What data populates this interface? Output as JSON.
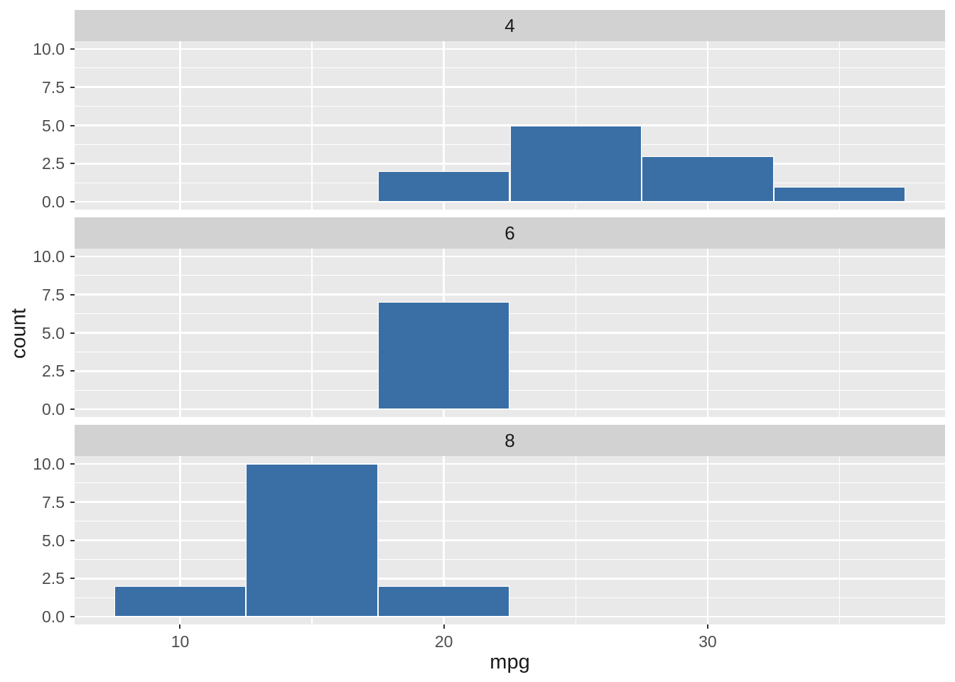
{
  "chart_data": {
    "type": "histogram",
    "title": "",
    "xlabel": "mpg",
    "ylabel": "count",
    "binwidth": 5,
    "grid": true,
    "legend_position": "none",
    "x_range": [
      6,
      39
    ],
    "y_range": [
      -0.5,
      10.5
    ],
    "x_major_ticks": [
      10,
      20,
      30
    ],
    "x_tick_labels": [
      "10",
      "20",
      "30"
    ],
    "x_minor_gridlines": [
      15,
      25,
      35
    ],
    "y_major_ticks": [
      0,
      2.5,
      5,
      7.5,
      10
    ],
    "y_tick_labels": [
      "0.0",
      "2.5",
      "5.0",
      "7.5",
      "10.0"
    ],
    "y_minor_gridlines": [
      1.25,
      3.75,
      6.25,
      8.75
    ],
    "facets": [
      {
        "label": "4",
        "bars": [
          {
            "x0": 17.5,
            "x1": 22.5,
            "count": 2
          },
          {
            "x0": 22.5,
            "x1": 27.5,
            "count": 5
          },
          {
            "x0": 27.5,
            "x1": 32.5,
            "count": 3
          },
          {
            "x0": 32.5,
            "x1": 37.5,
            "count": 1
          }
        ]
      },
      {
        "label": "6",
        "bars": [
          {
            "x0": 17.5,
            "x1": 22.5,
            "count": 7
          }
        ]
      },
      {
        "label": "8",
        "bars": [
          {
            "x0": 7.5,
            "x1": 12.5,
            "count": 2
          },
          {
            "x0": 12.5,
            "x1": 17.5,
            "count": 10
          },
          {
            "x0": 17.5,
            "x1": 22.5,
            "count": 2
          }
        ]
      }
    ],
    "colors": {
      "figure_bg": "#FFFFFF",
      "panel_bg": "#E9E9E9",
      "strip_bg": "#D2D2D2",
      "gridline": "#FFFFFF",
      "bar_fill": "#3A6FA6",
      "bar_border": "#FFFFFF",
      "tick_mark": "#333333",
      "tick_label": "#4D4D4D",
      "axis_title": "#1A1A1A",
      "strip_text": "#1A1A1A"
    }
  }
}
